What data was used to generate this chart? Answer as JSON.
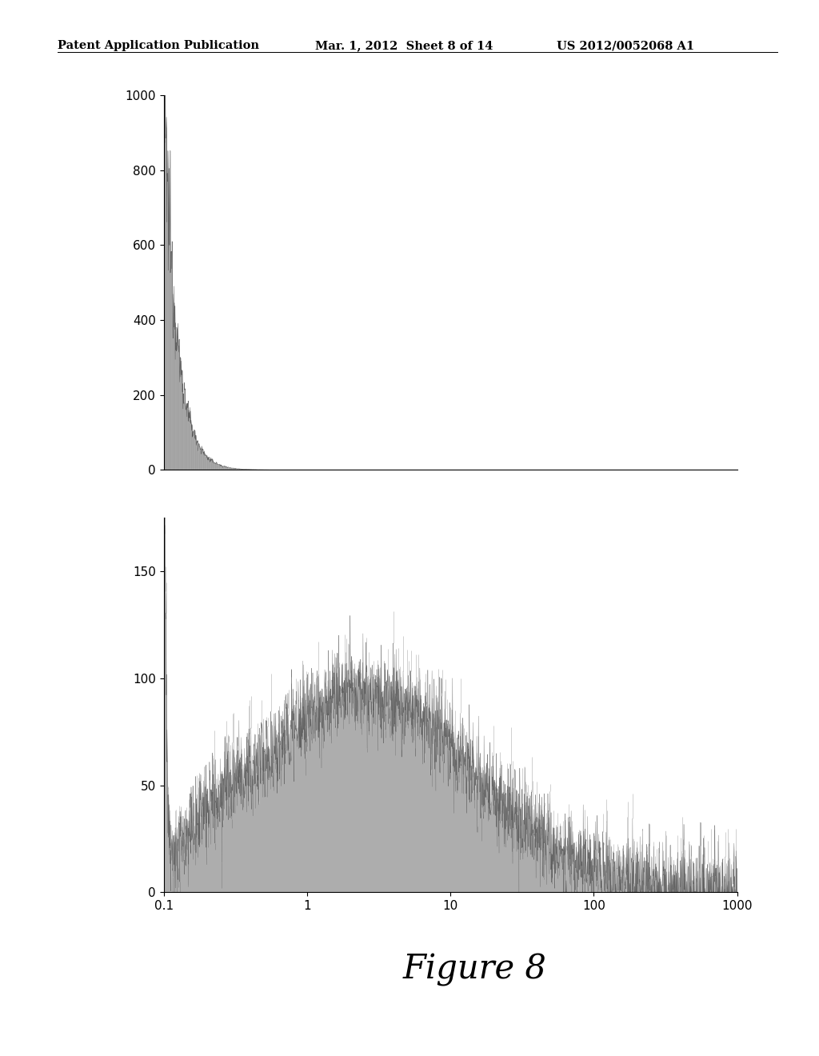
{
  "header_left": "Patent Application Publication",
  "header_mid": "Mar. 1, 2012  Sheet 8 of 14",
  "header_right": "US 2012/0052068 A1",
  "figure_label": "Figure 8",
  "top_plot": {
    "ylim": [
      0,
      1000
    ],
    "yticks": [
      0,
      200,
      400,
      600,
      800,
      1000
    ]
  },
  "bottom_plot": {
    "xlim_log": [
      -1,
      3
    ],
    "xticks": [
      0.1,
      1,
      10,
      100,
      1000
    ],
    "xtick_labels": [
      "0.1",
      "1",
      "10",
      "100",
      "1000"
    ],
    "ylim": [
      0,
      175
    ],
    "yticks": [
      0,
      50,
      100,
      150
    ]
  },
  "fill_color": "#999999",
  "line_color": "#444444",
  "bg_color": "#ffffff",
  "header_fontsize": 10.5,
  "tick_fontsize": 11,
  "figure_label_fontsize": 30
}
